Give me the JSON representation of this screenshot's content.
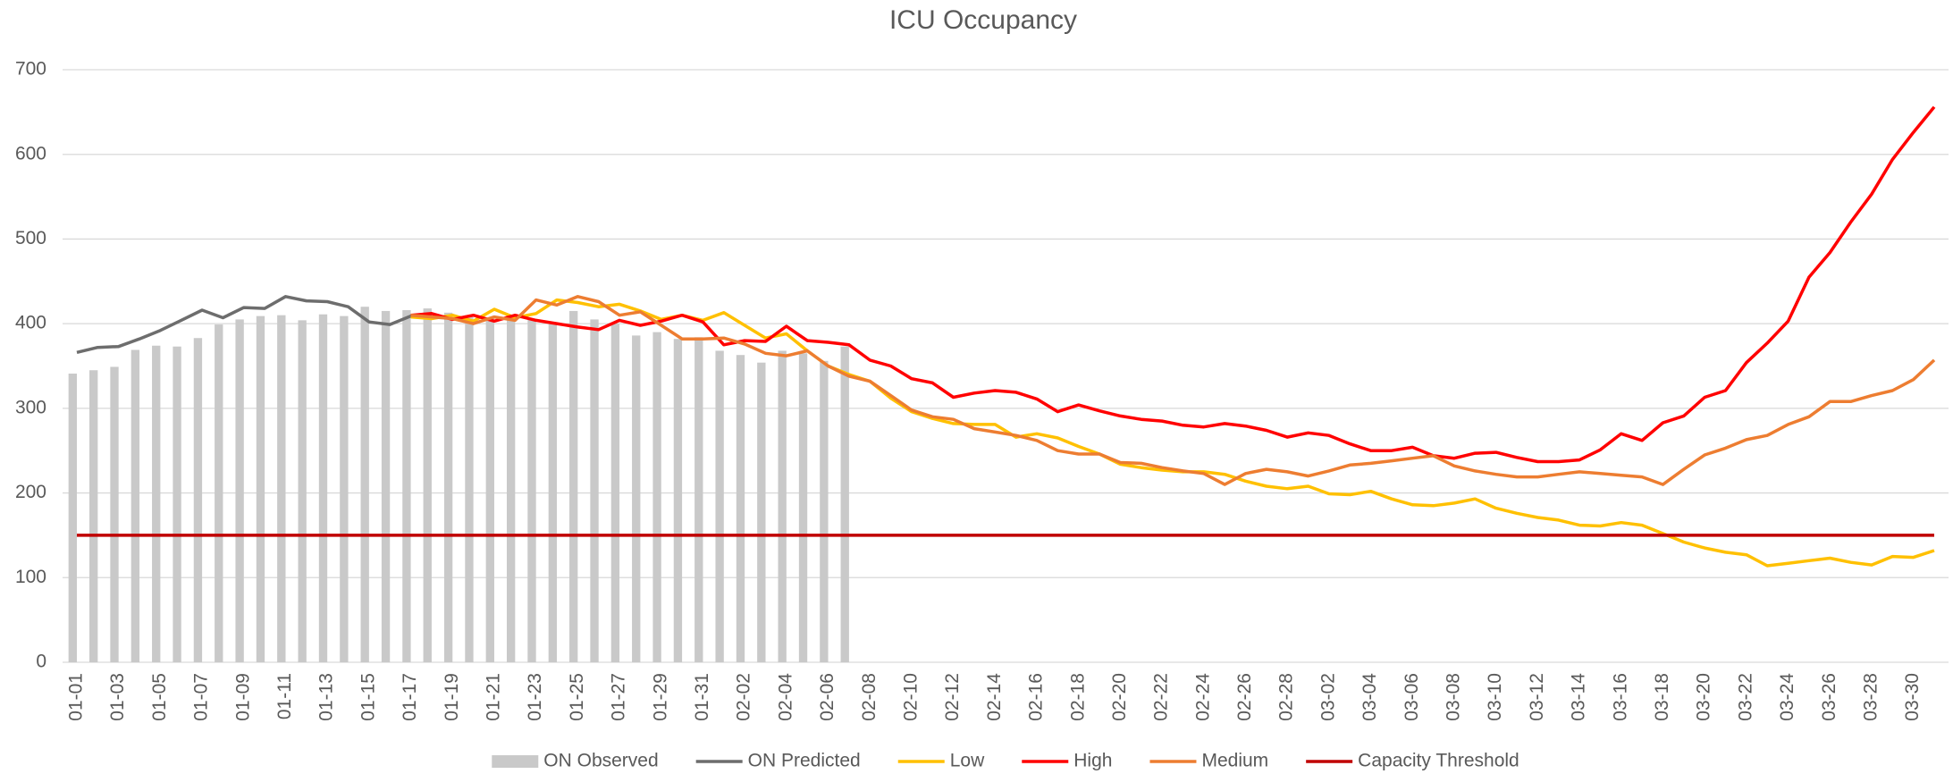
{
  "chart_data": {
    "type": "line",
    "title": "ICU Occupancy",
    "categories": [
      "01-01",
      null,
      "01-03",
      null,
      "01-05",
      null,
      "01-07",
      null,
      "01-09",
      null,
      "01-11",
      null,
      "01-13",
      null,
      "01-15",
      null,
      "01-17",
      null,
      "01-19",
      null,
      "01-21",
      null,
      "01-23",
      null,
      "01-25",
      null,
      "01-27",
      null,
      "01-29",
      null,
      "01-31",
      null,
      "02-02",
      null,
      "02-04",
      null,
      "02-06",
      null,
      "02-08",
      null,
      "02-10",
      null,
      "02-12",
      null,
      "02-14",
      null,
      "02-16",
      null,
      "02-18",
      null,
      "02-20",
      null,
      "02-22",
      null,
      "02-24",
      null,
      "02-26",
      null,
      "02-28",
      null,
      "03-02",
      null,
      "03-04",
      null,
      "03-06",
      null,
      "03-08",
      null,
      "03-10",
      null,
      "03-12",
      null,
      "03-14",
      null,
      "03-16",
      null,
      "03-18",
      null,
      "03-20",
      null,
      "03-22",
      null,
      "03-24",
      null,
      "03-26",
      null,
      "03-28",
      null,
      "03-30",
      null
    ],
    "series": [
      {
        "name": "ON Observed",
        "type": "bar",
        "color": "#c9c9c9",
        "values": [
          341,
          345,
          349,
          369,
          374,
          373,
          383,
          399,
          405,
          409,
          410,
          404,
          411,
          409,
          420,
          415,
          416,
          418,
          413,
          410,
          406,
          410,
          405,
          400,
          415,
          405,
          400,
          386,
          390,
          382,
          384,
          368,
          363,
          354,
          368,
          365,
          356,
          373,
          null,
          null,
          null,
          null,
          null,
          null,
          null,
          null,
          null,
          null,
          null,
          null,
          null,
          null,
          null,
          null,
          null,
          null,
          null,
          null,
          null,
          null,
          null,
          null,
          null,
          null,
          null,
          null,
          null,
          null,
          null,
          null,
          null,
          null,
          null,
          null,
          null,
          null,
          null,
          null,
          null,
          null,
          null,
          null,
          null,
          null,
          null,
          null,
          null,
          null,
          null,
          null
        ]
      },
      {
        "name": "ON Predicted",
        "type": "line",
        "color": "#6d6d6d",
        "values": [
          366,
          372,
          373,
          382,
          392,
          404,
          416,
          407,
          419,
          418,
          432,
          427,
          426,
          420,
          402,
          399,
          409,
          410,
          null,
          null,
          null,
          null,
          null,
          null,
          null,
          null,
          null,
          null,
          null,
          null,
          null,
          null,
          null,
          null,
          null,
          null,
          null,
          null,
          null,
          null,
          null,
          null,
          null,
          null,
          null,
          null,
          null,
          null,
          null,
          null,
          null,
          null,
          null,
          null,
          null,
          null,
          null,
          null,
          null,
          null,
          null,
          null,
          null,
          null,
          null,
          null,
          null,
          null,
          null,
          null,
          null,
          null,
          null,
          null,
          null,
          null,
          null,
          null,
          null,
          null,
          null,
          null,
          null,
          null,
          null,
          null,
          null,
          null,
          null,
          null
        ]
      },
      {
        "name": "Low",
        "type": "line",
        "color": "#ffc000",
        "values": [
          null,
          null,
          null,
          null,
          null,
          null,
          null,
          null,
          null,
          null,
          null,
          null,
          null,
          null,
          null,
          null,
          408,
          406,
          410,
          403,
          417,
          407,
          412,
          428,
          425,
          420,
          423,
          415,
          405,
          410,
          404,
          413,
          398,
          383,
          388,
          368,
          350,
          340,
          332,
          312,
          296,
          288,
          282,
          281,
          281,
          266,
          270,
          265,
          255,
          246,
          234,
          230,
          227,
          225,
          225,
          222,
          214,
          208,
          205,
          208,
          199,
          198,
          202,
          193,
          186,
          185,
          188,
          193,
          182,
          176,
          171,
          168,
          162,
          161,
          165,
          162,
          152,
          142,
          135,
          130,
          127,
          114,
          117,
          120,
          123,
          118,
          115,
          125,
          124,
          132
        ]
      },
      {
        "name": "High",
        "type": "line",
        "color": "#ff0000",
        "values": [
          null,
          null,
          null,
          null,
          null,
          null,
          null,
          null,
          null,
          null,
          null,
          null,
          null,
          null,
          null,
          null,
          410,
          412,
          405,
          410,
          403,
          410,
          404,
          400,
          396,
          393,
          404,
          398,
          403,
          410,
          402,
          375,
          380,
          379,
          397,
          380,
          378,
          375,
          357,
          350,
          335,
          330,
          313,
          318,
          321,
          319,
          311,
          296,
          304,
          297,
          291,
          287,
          285,
          280,
          278,
          282,
          279,
          274,
          266,
          271,
          268,
          258,
          250,
          250,
          254,
          244,
          241,
          247,
          248,
          242,
          237,
          237,
          239,
          251,
          270,
          262,
          283,
          291,
          313,
          321,
          354,
          377,
          403,
          455,
          484,
          520,
          553,
          594,
          626,
          656
        ]
      },
      {
        "name": "Medium",
        "type": "line",
        "color": "#ed7d31",
        "values": [
          null,
          null,
          null,
          null,
          null,
          null,
          null,
          null,
          null,
          null,
          null,
          null,
          null,
          null,
          null,
          null,
          410,
          408,
          406,
          400,
          408,
          404,
          428,
          422,
          432,
          426,
          410,
          414,
          398,
          382,
          382,
          383,
          376,
          365,
          362,
          368,
          350,
          338,
          332,
          315,
          298,
          290,
          287,
          276,
          272,
          268,
          262,
          250,
          246,
          246,
          236,
          235,
          230,
          226,
          223,
          210,
          223,
          228,
          225,
          220,
          226,
          233,
          235,
          238,
          241,
          244,
          232,
          226,
          222,
          219,
          219,
          222,
          225,
          223,
          221,
          219,
          210,
          228,
          245,
          253,
          263,
          268,
          281,
          290,
          308,
          308,
          315,
          321,
          334,
          357
        ]
      },
      {
        "name": "Capacity Threshold",
        "type": "line",
        "color": "#c00000",
        "values": [
          150,
          150,
          150,
          150,
          150,
          150,
          150,
          150,
          150,
          150,
          150,
          150,
          150,
          150,
          150,
          150,
          150,
          150,
          150,
          150,
          150,
          150,
          150,
          150,
          150,
          150,
          150,
          150,
          150,
          150,
          150,
          150,
          150,
          150,
          150,
          150,
          150,
          150,
          150,
          150,
          150,
          150,
          150,
          150,
          150,
          150,
          150,
          150,
          150,
          150,
          150,
          150,
          150,
          150,
          150,
          150,
          150,
          150,
          150,
          150,
          150,
          150,
          150,
          150,
          150,
          150,
          150,
          150,
          150,
          150,
          150,
          150,
          150,
          150,
          150,
          150,
          150,
          150,
          150,
          150,
          150,
          150,
          150,
          150,
          150,
          150,
          150,
          150,
          150,
          150
        ]
      }
    ],
    "ylim": [
      0,
      700
    ],
    "yticks": [
      0,
      100,
      200,
      300,
      400,
      500,
      600,
      700
    ],
    "grid": true,
    "legend": "bottom"
  }
}
